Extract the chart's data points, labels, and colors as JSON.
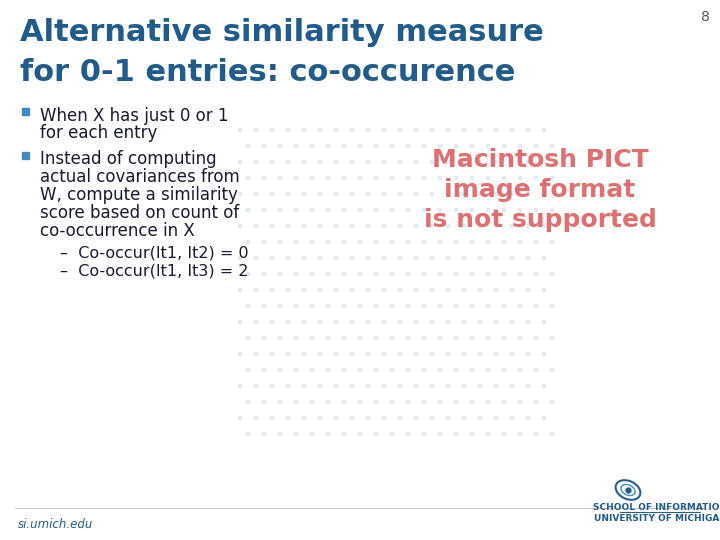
{
  "slide_number": "8",
  "title_line1": "Alternative similarity measure",
  "title_line2": "for 0-1 entries: co-occurence",
  "title_color": "#1F5C8B",
  "background_color": "#FFFFFF",
  "bullet_color": "#3B8BBE",
  "bullet_text_color": "#1A1A2E",
  "bullet1_line1": "When X has just 0 or 1",
  "bullet1_line2": "for each entry",
  "bullet2_line1": "Instead of computing",
  "bullet2_line2": "actual covariances from",
  "bullet2_line3": "W, compute a similarity",
  "bullet2_line4": "score based on count of",
  "bullet2_line5": "co-occurrence in X",
  "sub_bullet1": "–  Co-occur(It1, It2) = 0",
  "sub_bullet2": "–  Co-occur(It1, It3) = 2",
  "pict_line1": "Macintosh PICT",
  "pict_line2": "image format",
  "pict_line3": "is not supported",
  "pict_color": "#E07070",
  "footer_left": "si.umich.edu",
  "footer_right1": "SCHOOL OF INFORMATION",
  "footer_right2": "UNIVERSITY OF MICHIGAN",
  "footer_color": "#1F5C8B",
  "slide_num_color": "#555555",
  "watermark_color": "#C8DCF0"
}
